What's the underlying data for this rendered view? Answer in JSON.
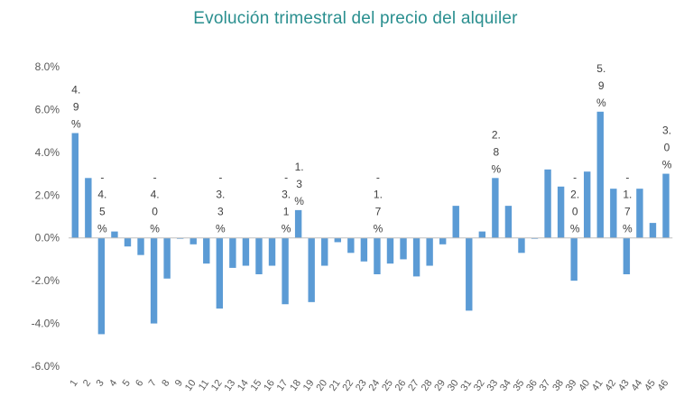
{
  "chart_data": {
    "type": "bar",
    "title": "Evolución trimestral del precio del alquiler",
    "xlabel": "",
    "ylabel": "",
    "ylim": [
      -6,
      8
    ],
    "y_ticks": [
      "8.0%",
      "6.0%",
      "4.0%",
      "2.0%",
      "0.0%",
      "-2.0%",
      "-4.0%",
      "-6.0%"
    ],
    "y_tick_values": [
      8,
      6,
      4,
      2,
      0,
      -2,
      -4,
      -6
    ],
    "grid": false,
    "bar_color": "#5b9bd5",
    "categories": [
      "1",
      "2",
      "3",
      "4",
      "5",
      "6",
      "7",
      "8",
      "9",
      "10",
      "11",
      "12",
      "13",
      "14",
      "15",
      "16",
      "17",
      "18",
      "19",
      "20",
      "21",
      "22",
      "23",
      "24",
      "25",
      "26",
      "27",
      "28",
      "29",
      "30",
      "31",
      "32",
      "33",
      "34",
      "35",
      "36",
      "37",
      "38",
      "39",
      "40",
      "41",
      "42",
      "43",
      "44",
      "45",
      "46"
    ],
    "values": [
      4.9,
      2.8,
      -4.5,
      0.3,
      -0.4,
      -0.8,
      -4.0,
      -1.9,
      0.0,
      -0.3,
      -1.2,
      -3.3,
      -1.4,
      -1.3,
      -1.7,
      -1.3,
      -3.1,
      1.3,
      -3.0,
      -1.3,
      -0.2,
      -0.7,
      -1.1,
      -1.7,
      -1.2,
      -1.0,
      -1.8,
      -1.3,
      -0.3,
      1.5,
      -3.4,
      0.3,
      2.8,
      1.5,
      -0.7,
      0.0,
      3.2,
      2.4,
      -2.0,
      3.1,
      5.9,
      2.3,
      -1.7,
      2.3,
      0.7,
      3.0
    ],
    "data_labels": [
      {
        "index": 0,
        "text": "4.9%"
      },
      {
        "index": 2,
        "text": "-4.5%"
      },
      {
        "index": 6,
        "text": "-4.0%"
      },
      {
        "index": 11,
        "text": "-3.3%"
      },
      {
        "index": 16,
        "text": "-3.1%"
      },
      {
        "index": 17,
        "text": "1.3%"
      },
      {
        "index": 23,
        "text": "-1.7%"
      },
      {
        "index": 32,
        "text": "2.8%"
      },
      {
        "index": 38,
        "text": "-2.0%"
      },
      {
        "index": 40,
        "text": "5.9%"
      },
      {
        "index": 42,
        "text": "-1.7%"
      },
      {
        "index": 45,
        "text": "3.0%"
      }
    ]
  }
}
